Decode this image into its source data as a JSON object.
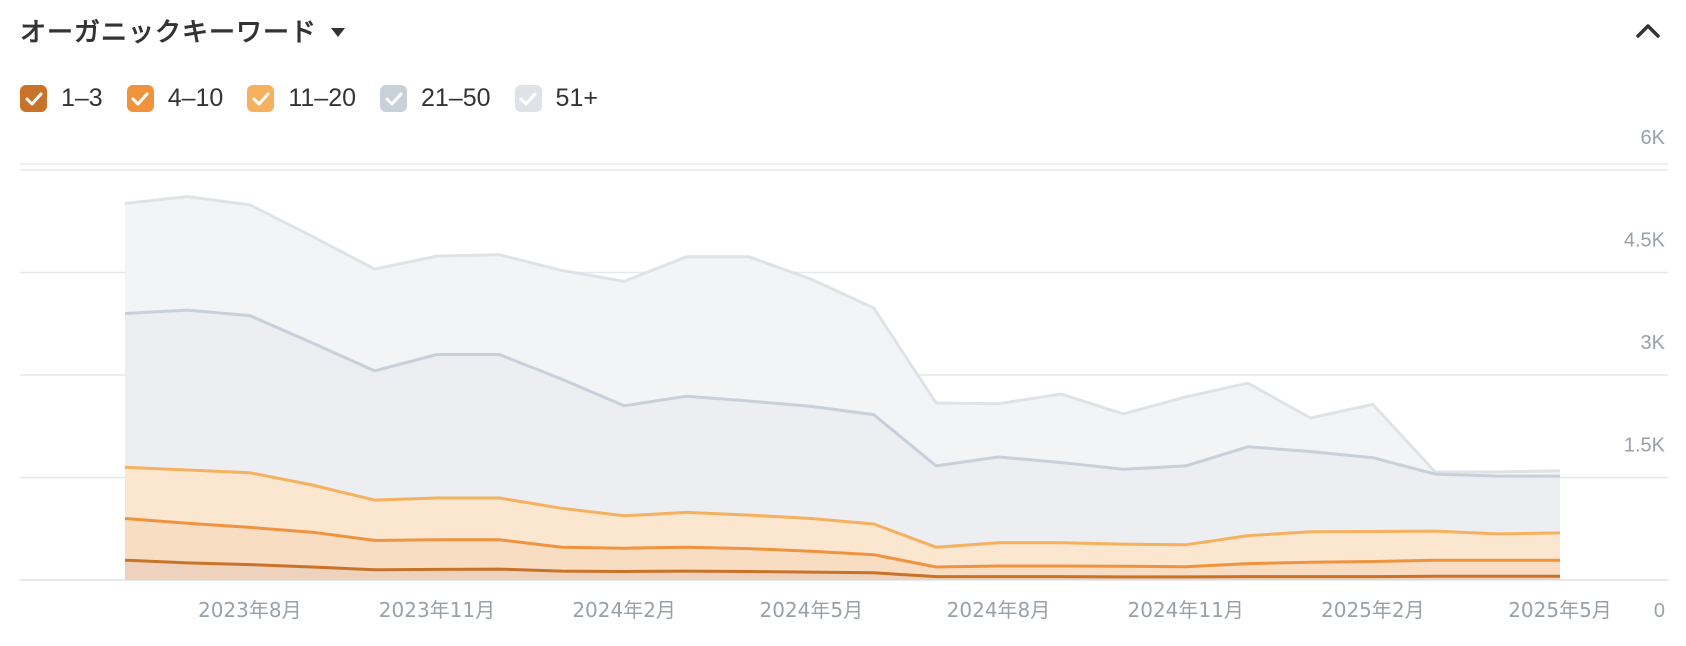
{
  "header": {
    "title": "オーガニックキーワード"
  },
  "legend": [
    {
      "label": "1–3",
      "color": "#c87329",
      "check_color": "#ffffff"
    },
    {
      "label": "4–10",
      "color": "#f0933f",
      "check_color": "#ffffff"
    },
    {
      "label": "11–20",
      "color": "#f5b15e",
      "check_color": "#ffffff"
    },
    {
      "label": "21–50",
      "color": "#c9d0d9",
      "check_color": "#ffffff"
    },
    {
      "label": "51+",
      "color": "#dfe3e8",
      "check_color": "#ffffff"
    }
  ],
  "chart_data": {
    "type": "area",
    "stacked": true,
    "x": [
      "2023-06",
      "2023-07",
      "2023-08",
      "2023-09",
      "2023-10",
      "2023-11",
      "2023-12",
      "2024-01",
      "2024-02",
      "2024-03",
      "2024-04",
      "2024-05",
      "2024-06",
      "2024-07",
      "2024-08",
      "2024-09",
      "2024-10",
      "2024-11",
      "2024-12",
      "2025-01",
      "2025-02",
      "2025-03",
      "2025-04",
      "2025-05"
    ],
    "x_ticks": [
      "2023年8月",
      "2023年11月",
      "2024年2月",
      "2024年5月",
      "2024年8月",
      "2024年11月",
      "2025年2月",
      "2025年5月"
    ],
    "y_ticks": [
      "0",
      "1.5K",
      "3K",
      "4.5K",
      "6K"
    ],
    "y_tick_values": [
      0,
      1500,
      3000,
      4500,
      6000
    ],
    "ylim": [
      0,
      6000
    ],
    "grid": true,
    "series": [
      {
        "name": "1–3",
        "color": "#c87329",
        "fill": "#eed2bd",
        "cumulative": [
          290,
          250,
          225,
          190,
          150,
          155,
          160,
          130,
          125,
          130,
          125,
          115,
          105,
          50,
          50,
          50,
          45,
          45,
          50,
          50,
          50,
          55,
          55,
          55
        ]
      },
      {
        "name": "4–10",
        "color": "#f0933f",
        "fill": "#f9ddc2",
        "cumulative": [
          900,
          830,
          770,
          700,
          580,
          590,
          590,
          480,
          465,
          480,
          460,
          420,
          370,
          190,
          205,
          205,
          200,
          195,
          240,
          260,
          270,
          290,
          290,
          290
        ]
      },
      {
        "name": "11–20",
        "color": "#f5b15e",
        "fill": "#fbe6d0",
        "cumulative": [
          1650,
          1610,
          1570,
          1390,
          1170,
          1200,
          1200,
          1050,
          940,
          990,
          950,
          900,
          820,
          480,
          545,
          545,
          525,
          515,
          650,
          705,
          710,
          715,
          675,
          690
        ]
      },
      {
        "name": "21–50",
        "color": "#c9d0d9",
        "fill": "#eceef1",
        "cumulative": [
          3900,
          3950,
          3870,
          3470,
          3060,
          3300,
          3300,
          2940,
          2550,
          2690,
          2620,
          2540,
          2420,
          1670,
          1800,
          1720,
          1620,
          1670,
          1950,
          1880,
          1790,
          1550,
          1520,
          1520
        ]
      },
      {
        "name": "51+",
        "color": "#dfe3e8",
        "fill": "#f3f4f6",
        "cumulative": [
          5510,
          5610,
          5490,
          5030,
          4550,
          4740,
          4760,
          4530,
          4370,
          4730,
          4730,
          4400,
          3980,
          2590,
          2580,
          2720,
          2430,
          2680,
          2880,
          2370,
          2570,
          1580,
          1580,
          1600
        ]
      }
    ]
  }
}
